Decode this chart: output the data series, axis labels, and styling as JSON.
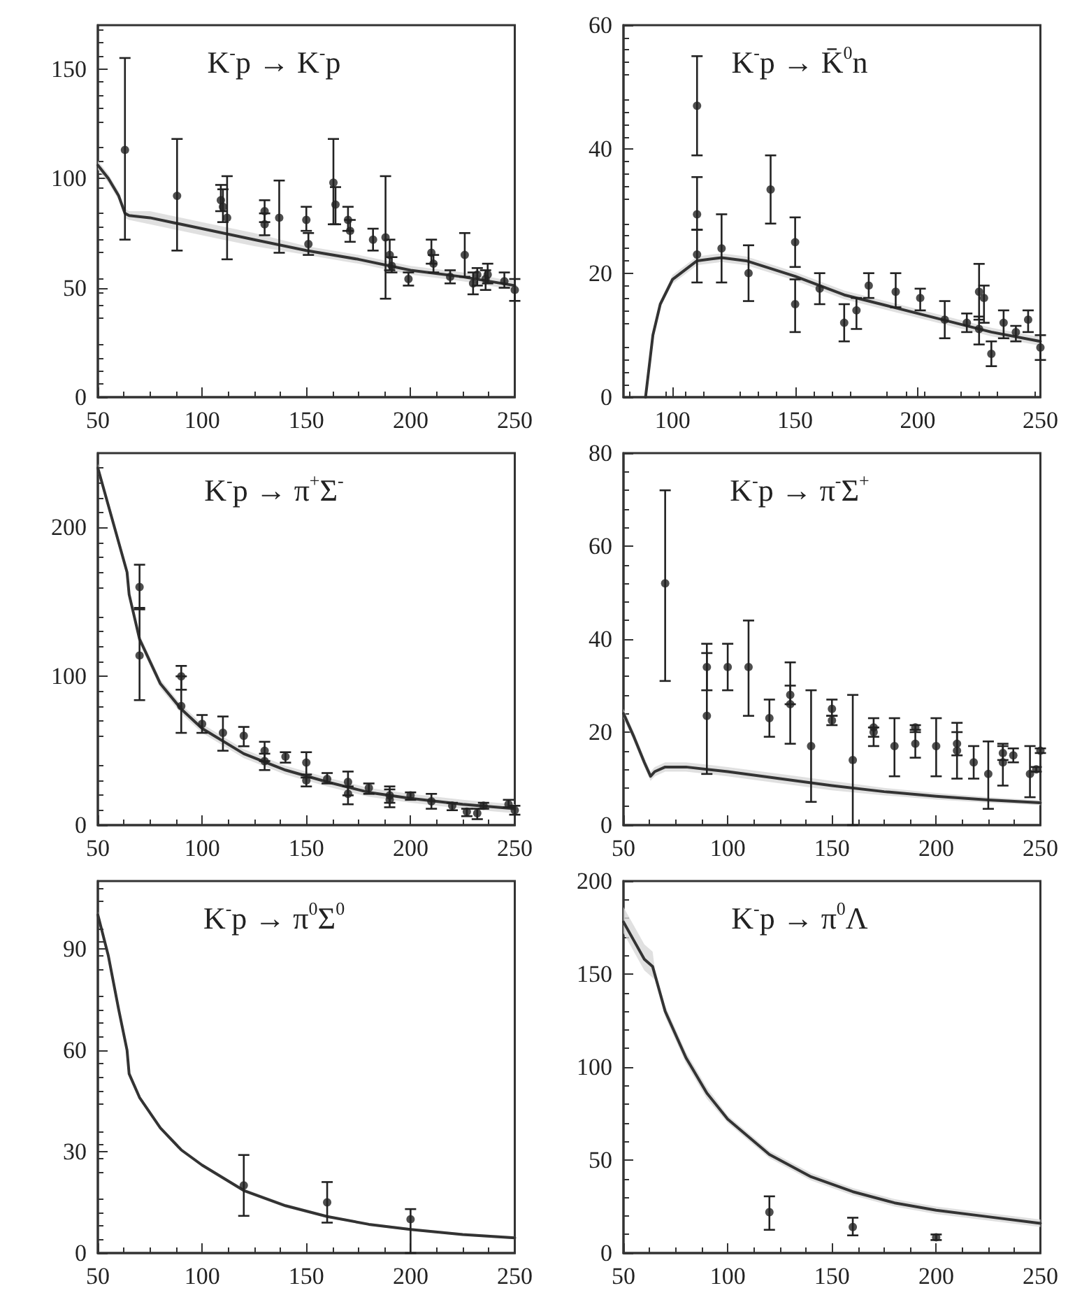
{
  "chart_data": [
    {
      "type": "scatter",
      "title": "K$^{-}$p → K$^{-}$p",
      "xlim": [
        50,
        250
      ],
      "xticks": [
        50,
        100,
        150,
        200,
        250
      ],
      "ylim": [
        0,
        170
      ],
      "yticks": [
        0,
        50,
        100,
        150
      ],
      "series": [
        {
          "marker": "circle",
          "color": "#222222",
          "x": [
            63,
            88,
            109,
            110,
            112,
            130,
            130,
            137,
            150,
            151,
            163,
            164,
            170,
            171,
            182,
            188,
            190,
            191,
            199,
            210,
            211,
            219,
            226,
            230,
            232,
            236,
            237,
            245,
            250
          ],
          "values": [
            113,
            92,
            90,
            87,
            82,
            85,
            79,
            82,
            81,
            70,
            98,
            88,
            81,
            76,
            72,
            73,
            65,
            60,
            54,
            66,
            61,
            55,
            65,
            52,
            56,
            54,
            56,
            53,
            49
          ],
          "errors": [
            [
              72,
              155
            ],
            [
              67,
              118
            ],
            [
              85,
              97
            ],
            [
              80,
              95
            ],
            [
              63,
              101
            ],
            [
              80,
              90
            ],
            [
              74,
              84
            ],
            [
              66,
              99
            ],
            [
              76,
              87
            ],
            [
              65,
              75
            ],
            [
              79,
              118
            ],
            [
              79,
              96
            ],
            [
              76,
              87
            ],
            [
              71,
              81
            ],
            [
              67,
              77
            ],
            [
              45,
              101
            ],
            [
              58,
              72
            ],
            [
              57,
              64
            ],
            [
              51,
              57
            ],
            [
              61,
              72
            ],
            [
              57,
              65
            ],
            [
              52,
              58
            ],
            [
              55,
              75
            ],
            [
              47,
              57
            ],
            [
              51,
              59
            ],
            [
              49,
              58
            ],
            [
              52,
              61
            ],
            [
              50,
              57
            ],
            [
              44,
              54
            ]
          ]
        },
        {
          "type": "line",
          "color": "#333333",
          "x": [
            50,
            55,
            60,
            63,
            65,
            75,
            100,
            125,
            150,
            175,
            200,
            225,
            250
          ],
          "values": [
            106,
            100,
            92,
            84,
            83,
            82,
            77,
            72,
            67,
            63,
            58,
            55,
            51
          ],
          "lower": [
            104,
            98,
            90,
            82,
            81,
            79,
            74,
            69,
            65,
            61,
            56,
            53,
            49
          ],
          "upper": [
            108,
            102,
            94,
            86,
            85,
            85,
            80,
            75,
            69,
            65,
            60,
            57,
            53
          ]
        }
      ]
    },
    {
      "type": "scatter",
      "title": "K$^{-}$p → K̄$^{0}$n",
      "xlim": [
        80,
        250
      ],
      "xticks": [
        100,
        150,
        200,
        250
      ],
      "ylim": [
        0,
        60
      ],
      "yticks": [
        0,
        20,
        40,
        60
      ],
      "series": [
        {
          "marker": "circle",
          "color": "#222222",
          "x": [
            110,
            110,
            110,
            120,
            131,
            140,
            150,
            150,
            160,
            170,
            175,
            180,
            191,
            201,
            211,
            220,
            225,
            227,
            225,
            230,
            235,
            240,
            245,
            250
          ],
          "values": [
            47,
            29.5,
            23,
            24,
            20,
            33.5,
            25,
            15,
            17.5,
            12,
            14,
            18,
            17,
            16,
            12.5,
            12,
            17,
            16,
            11,
            7,
            12,
            10.5,
            12.5,
            8
          ],
          "errors": [
            [
              39,
              55
            ],
            [
              27,
              35.5
            ],
            [
              18.5,
              27
            ],
            [
              18.5,
              29.5
            ],
            [
              15.5,
              24.5
            ],
            [
              28,
              39
            ],
            [
              21,
              29
            ],
            [
              10.5,
              19
            ],
            [
              15,
              20
            ],
            [
              9,
              15
            ],
            [
              11,
              16
            ],
            [
              16,
              20
            ],
            [
              14.5,
              20
            ],
            [
              14,
              17.5
            ],
            [
              9.5,
              15.5
            ],
            [
              10.5,
              13.5
            ],
            [
              12.5,
              21.5
            ],
            [
              12,
              18
            ],
            [
              8.5,
              13
            ],
            [
              5,
              9
            ],
            [
              9.5,
              14
            ],
            [
              9,
              11.5
            ],
            [
              10.5,
              14
            ],
            [
              6,
              10
            ]
          ]
        },
        {
          "type": "line",
          "color": "#333333",
          "x": [
            89,
            92,
            95,
            100,
            110,
            120,
            130,
            150,
            170,
            190,
            210,
            230,
            250
          ],
          "values": [
            0,
            10,
            15,
            19,
            22,
            22.5,
            22,
            19.5,
            16.5,
            14.5,
            12.5,
            10.5,
            9
          ],
          "lower": [
            0,
            9.5,
            14.5,
            18.3,
            21.3,
            21.8,
            21.3,
            18.8,
            15.8,
            13.8,
            11.8,
            9.8,
            8.3
          ],
          "upper": [
            0,
            10.5,
            15.5,
            19.7,
            22.7,
            23.2,
            22.7,
            20.2,
            17.2,
            15.2,
            13.2,
            11.2,
            9.7
          ]
        }
      ]
    },
    {
      "type": "scatter",
      "title": "K$^{-}$p → π$^{+}$Σ$^{-}$",
      "xlim": [
        50,
        250
      ],
      "xticks": [
        50,
        100,
        150,
        200,
        250
      ],
      "ylim": [
        0,
        250
      ],
      "yticks": [
        0,
        100,
        200
      ],
      "series": [
        {
          "marker": "circle",
          "color": "#222222",
          "x": [
            70,
            70,
            90,
            90,
            100,
            110,
            120,
            130,
            130,
            140,
            150,
            150,
            160,
            170,
            170,
            180,
            190,
            190,
            200,
            210,
            220,
            227,
            232,
            235,
            247,
            250
          ],
          "values": [
            160,
            114,
            100,
            80,
            68,
            62,
            60,
            50,
            43,
            46,
            42,
            30,
            31,
            21,
            29,
            25,
            17,
            20,
            20,
            16,
            13,
            9,
            8,
            13,
            14,
            10
          ],
          "errors": [
            [
              145,
              175
            ],
            [
              84,
              146
            ],
            [
              91,
              107
            ],
            [
              62,
              100
            ],
            [
              62,
              74
            ],
            [
              50,
              73
            ],
            [
              53,
              66
            ],
            [
              43,
              56
            ],
            [
              37,
              48
            ],
            [
              42,
              49
            ],
            [
              32,
              49
            ],
            [
              26,
              34
            ],
            [
              28,
              35
            ],
            [
              14,
              26
            ],
            [
              20,
              36
            ],
            [
              21,
              28
            ],
            [
              12,
              24
            ],
            [
              15,
              26
            ],
            [
              17,
              22
            ],
            [
              11,
              21
            ],
            [
              10,
              15
            ],
            [
              6,
              11
            ],
            [
              4,
              11
            ],
            [
              11,
              15
            ],
            [
              12,
              17
            ],
            [
              7,
              13
            ]
          ]
        },
        {
          "type": "line",
          "color": "#333333",
          "x": [
            50,
            55,
            60,
            64,
            65,
            70,
            80,
            90,
            100,
            120,
            140,
            160,
            180,
            200,
            225,
            250
          ],
          "values": [
            240,
            215,
            190,
            170,
            155,
            125,
            95,
            78,
            65,
            48,
            37,
            29,
            22,
            18,
            14,
            11
          ],
          "lower": [
            237,
            212,
            187,
            167,
            152,
            122,
            92,
            75,
            62,
            45,
            34,
            26,
            19,
            15,
            11,
            8
          ],
          "upper": [
            243,
            218,
            193,
            173,
            158,
            128,
            98,
            81,
            68,
            51,
            40,
            32,
            25,
            21,
            17,
            14
          ]
        }
      ]
    },
    {
      "type": "scatter",
      "title": "K$^{-}$p → π$^{-}$Σ$^{+}$",
      "xlim": [
        50,
        250
      ],
      "xticks": [
        50,
        100,
        150,
        200,
        250
      ],
      "ylim": [
        0,
        80
      ],
      "yticks": [
        0,
        20,
        40,
        60,
        80
      ],
      "series": [
        {
          "marker": "circle",
          "color": "#222222",
          "x": [
            70,
            90,
            90,
            100,
            110,
            120,
            130,
            130,
            140,
            150,
            150,
            160,
            170,
            170,
            180,
            190,
            190,
            200,
            210,
            210,
            218,
            225,
            232,
            232,
            237,
            245,
            248,
            250
          ],
          "values": [
            52,
            34,
            23.5,
            34,
            34,
            23,
            28,
            26,
            17,
            25,
            22.5,
            14,
            21,
            20,
            17,
            21,
            17.5,
            17,
            17.5,
            16,
            13.5,
            11,
            13.5,
            15.5,
            15,
            11,
            12,
            16
          ],
          "errors": [
            [
              31,
              72
            ],
            [
              29,
              39
            ],
            [
              11,
              37
            ],
            [
              29,
              39
            ],
            [
              23.5,
              44
            ],
            [
              19,
              27
            ],
            [
              26,
              30
            ],
            [
              17.5,
              35
            ],
            [
              5,
              29
            ],
            [
              23.5,
              27
            ],
            [
              21.5,
              23.5
            ],
            [
              0,
              28
            ],
            [
              19,
              23
            ],
            [
              17,
              21
            ],
            [
              10.5,
              23
            ],
            [
              20,
              21.5
            ],
            [
              14.5,
              20.5
            ],
            [
              10.5,
              23
            ],
            [
              15,
              22
            ],
            [
              10,
              20
            ],
            [
              10,
              17
            ],
            [
              3.5,
              18
            ],
            [
              8.5,
              17.5
            ],
            [
              14,
              17
            ],
            [
              13.5,
              16.5
            ],
            [
              6,
              17
            ],
            [
              11.5,
              12.5
            ],
            [
              15.5,
              16.5
            ]
          ]
        },
        {
          "type": "line",
          "color": "#333333",
          "x": [
            50,
            55,
            60,
            63,
            65,
            70,
            80,
            100,
            125,
            150,
            175,
            200,
            225,
            250
          ],
          "values": [
            24,
            19,
            13.5,
            10.5,
            11.5,
            12.5,
            12.5,
            11.5,
            10,
            8.5,
            7.2,
            6.2,
            5.4,
            4.8
          ],
          "lower": [
            23,
            18,
            12.5,
            9.5,
            10.5,
            11.5,
            11.5,
            10.5,
            9,
            7.5,
            6.4,
            5.5,
            4.8,
            4.3
          ],
          "upper": [
            25,
            20,
            14.5,
            11.5,
            12.5,
            13.5,
            13.5,
            12.5,
            11,
            9.5,
            8,
            6.9,
            6,
            5.3
          ]
        }
      ]
    },
    {
      "type": "scatter",
      "title": "K$^{-}$p → π$^{0}$Σ$^{0}$",
      "xlim": [
        50,
        250
      ],
      "xticks": [
        50,
        100,
        150,
        200,
        250
      ],
      "ylim": [
        0,
        110
      ],
      "yticks": [
        0,
        30,
        60,
        90
      ],
      "series": [
        {
          "marker": "circle",
          "color": "#222222",
          "x": [
            120,
            160,
            200
          ],
          "values": [
            20,
            15,
            10
          ],
          "errors": [
            [
              11,
              29
            ],
            [
              9,
              21
            ],
            [
              0,
              13
            ]
          ]
        },
        {
          "type": "line",
          "color": "#333333",
          "x": [
            50,
            55,
            60,
            64,
            65,
            70,
            80,
            90,
            100,
            120,
            140,
            160,
            180,
            200,
            225,
            250
          ],
          "values": [
            100,
            88,
            72,
            60,
            53,
            46,
            37,
            30.5,
            26,
            18.5,
            14,
            10.8,
            8.5,
            7,
            5.5,
            4.5
          ],
          "lower": [
            99,
            87,
            71,
            59,
            52,
            45.5,
            36.5,
            30,
            25.5,
            18,
            13.5,
            10.4,
            8.1,
            6.6,
            5.1,
            4.1
          ],
          "upper": [
            101,
            89,
            73,
            61,
            54,
            46.5,
            37.5,
            31,
            26.5,
            19,
            14.5,
            11.2,
            8.9,
            7.4,
            5.9,
            4.9
          ]
        }
      ]
    },
    {
      "type": "scatter",
      "title": "K$^{-}$p → π$^{0}$Λ",
      "xlim": [
        50,
        250
      ],
      "xticks": [
        50,
        100,
        150,
        200,
        250
      ],
      "ylim": [
        0,
        200
      ],
      "yticks": [
        0,
        50,
        100,
        150,
        200
      ],
      "series": [
        {
          "marker": "circle",
          "color": "#222222",
          "x": [
            120,
            160,
            200
          ],
          "values": [
            22,
            14,
            8.5
          ],
          "errors": [
            [
              12.5,
              30.5
            ],
            [
              9.5,
              19
            ],
            [
              7,
              10
            ]
          ]
        },
        {
          "type": "line",
          "color": "#333333",
          "x": [
            50,
            55,
            60,
            64,
            65,
            70,
            80,
            90,
            100,
            120,
            140,
            160,
            180,
            200,
            225,
            250
          ],
          "values": [
            178,
            168,
            158,
            154,
            150,
            130,
            105,
            86,
            72,
            53,
            41,
            33,
            27,
            23,
            19.5,
            16
          ],
          "lower": [
            172,
            162,
            152,
            148,
            147,
            127,
            102,
            83,
            70,
            51,
            39,
            31,
            25,
            21,
            17.5,
            14
          ],
          "upper": [
            186,
            176,
            166,
            162,
            153,
            133,
            108,
            89,
            74,
            55,
            43,
            35,
            29,
            25,
            21.5,
            18
          ]
        }
      ]
    }
  ]
}
